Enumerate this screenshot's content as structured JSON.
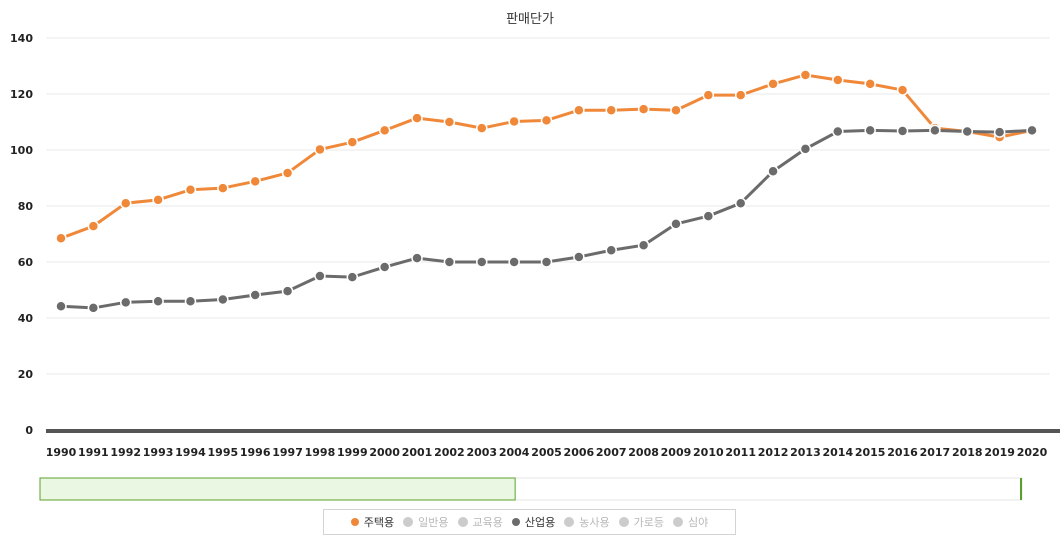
{
  "chart_data": {
    "type": "line",
    "title": "판매단가",
    "xlabel": "",
    "ylabel": "",
    "ylim": [
      0,
      140
    ],
    "yticks": [
      0,
      20,
      40,
      60,
      80,
      100,
      120,
      140
    ],
    "categories": [
      "1990",
      "1991",
      "1992",
      "1993",
      "1994",
      "1995",
      "1996",
      "1997",
      "1998",
      "1999",
      "2000",
      "2001",
      "2002",
      "2003",
      "2004",
      "2005",
      "2006",
      "2007",
      "2008",
      "2009",
      "2010",
      "2011",
      "2012",
      "2013",
      "2014",
      "2015",
      "2016",
      "2017",
      "2018",
      "2019",
      "2020"
    ],
    "series": [
      {
        "name": "주택용",
        "color": "#f0883a",
        "values": [
          68.5,
          72.8,
          81.0,
          82.2,
          85.8,
          86.4,
          88.8,
          91.8,
          100.2,
          102.8,
          107.0,
          111.4,
          110.0,
          107.8,
          110.2,
          110.6,
          114.2,
          114.2,
          114.6,
          114.2,
          119.6,
          119.6,
          123.6,
          126.8,
          125.0,
          123.6,
          121.4,
          107.8,
          106.6,
          104.6,
          107.0
        ]
      },
      {
        "name": "산업용",
        "color": "#6b6b6b",
        "values": [
          44.2,
          43.6,
          45.6,
          46.0,
          46.0,
          46.6,
          48.2,
          49.6,
          55.0,
          54.6,
          58.2,
          61.4,
          60.0,
          60.0,
          60.0,
          60.0,
          61.8,
          64.2,
          66.0,
          73.6,
          76.4,
          81.0,
          92.4,
          100.4,
          106.6,
          107.0,
          106.8,
          107.0,
          106.6,
          106.4,
          107.0
        ]
      }
    ],
    "legend": {
      "position": "bottom",
      "items": [
        {
          "label": "주택용",
          "active": true,
          "color": "#f0883a"
        },
        {
          "label": "일반용",
          "active": false,
          "color": "#cccccc"
        },
        {
          "label": "교육용",
          "active": false,
          "color": "#cccccc"
        },
        {
          "label": "산업용",
          "active": true,
          "color": "#6b6b6b"
        },
        {
          "label": "농사용",
          "active": false,
          "color": "#cccccc"
        },
        {
          "label": "가로등",
          "active": false,
          "color": "#cccccc"
        },
        {
          "label": "심야",
          "active": false,
          "color": "#cccccc"
        }
      ]
    },
    "navigator": {
      "selected_from": "1990",
      "selected_to": "2004"
    },
    "grid": true
  }
}
